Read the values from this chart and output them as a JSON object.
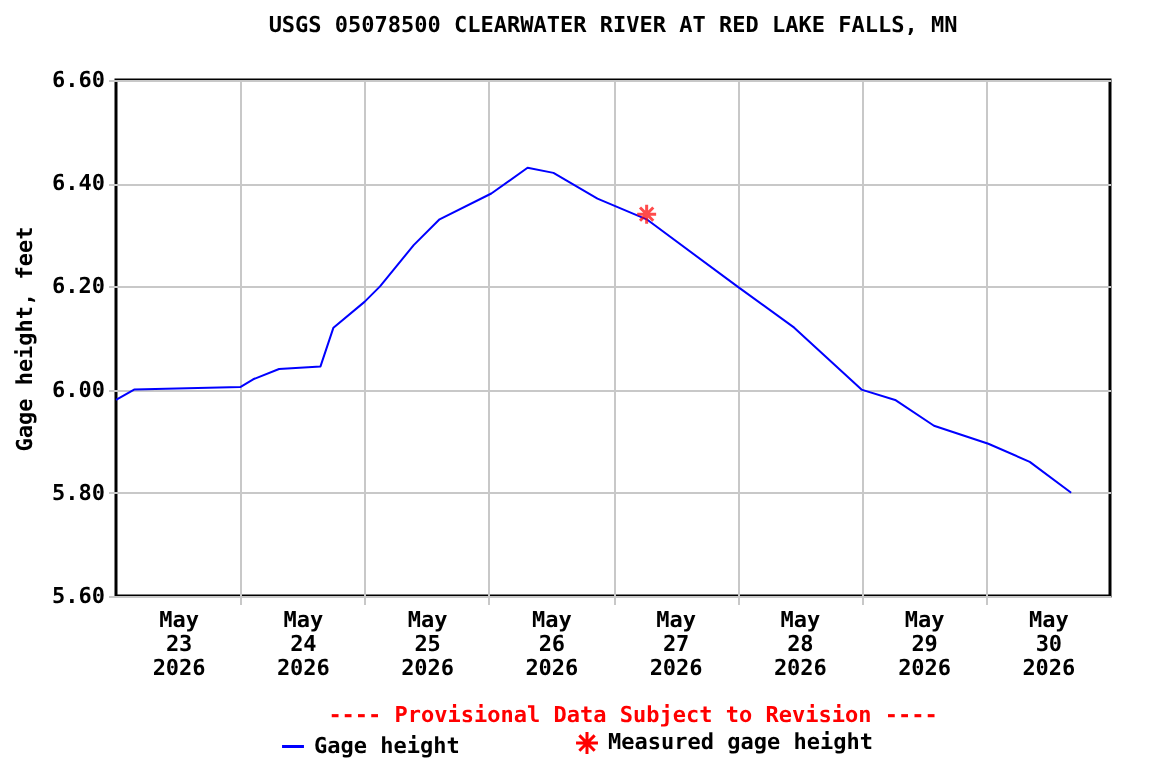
{
  "chart_data": {
    "type": "line",
    "title": "USGS 05078500 CLEARWATER RIVER AT RED LAKE FALLS, MN",
    "ylabel": "Gage height, feet",
    "annotations": [
      "---- Provisional Data Subject to Revision ----"
    ],
    "xlim": [
      "2026-05-23T00:00",
      "2026-05-31T00:00"
    ],
    "xticks": [
      {
        "value": "2026-05-23T12:00",
        "label": "May\n23\n2026"
      },
      {
        "value": "2026-05-24T12:00",
        "label": "May\n24\n2026"
      },
      {
        "value": "2026-05-25T12:00",
        "label": "May\n25\n2026"
      },
      {
        "value": "2026-05-26T12:00",
        "label": "May\n26\n2026"
      },
      {
        "value": "2026-05-27T12:00",
        "label": "May\n27\n2026"
      },
      {
        "value": "2026-05-28T12:00",
        "label": "May\n28\n2026"
      },
      {
        "value": "2026-05-29T12:00",
        "label": "May\n29\n2026"
      },
      {
        "value": "2026-05-30T12:00",
        "label": "May\n30\n2026"
      },
      {
        "value": "2026-05-24T00:00",
        "label": null
      },
      {
        "value": "2026-05-25T00:00",
        "label": null
      },
      {
        "value": "2026-05-26T00:00",
        "label": null
      },
      {
        "value": "2026-05-27T00:00",
        "label": null
      },
      {
        "value": "2026-05-28T00:00",
        "label": null
      },
      {
        "value": "2026-05-29T00:00",
        "label": null
      },
      {
        "value": "2026-05-30T00:00",
        "label": null
      }
    ],
    "ylim": [
      5.6,
      6.6
    ],
    "yticks": [
      {
        "value": 5.6,
        "label": "5.60"
      },
      {
        "value": 5.8,
        "label": "5.80"
      },
      {
        "value": 6.0,
        "label": "6.00"
      },
      {
        "value": 6.2,
        "label": "6.20"
      },
      {
        "value": 6.4,
        "label": "6.40"
      },
      {
        "value": 6.6,
        "label": "6.60"
      }
    ],
    "grid": true,
    "legend": "bottom",
    "series": [
      {
        "name": "Gage height",
        "type": "line",
        "color": "#0000ff",
        "x": [
          "2026-05-23T00:00",
          "2026-05-23T03:30",
          "2026-05-24T00:00",
          "2026-05-24T02:30",
          "2026-05-24T07:30",
          "2026-05-24T15:30",
          "2026-05-24T18:00",
          "2026-05-25T00:00",
          "2026-05-25T03:00",
          "2026-05-25T09:30",
          "2026-05-25T14:30",
          "2026-05-26T00:30",
          "2026-05-26T07:30",
          "2026-05-26T12:30",
          "2026-05-26T21:00",
          "2026-05-27T06:30",
          "2026-05-28T00:00",
          "2026-05-28T11:00",
          "2026-05-29T00:00",
          "2026-05-29T06:30",
          "2026-05-29T14:00",
          "2026-05-30T00:30",
          "2026-05-30T08:30",
          "2026-05-30T16:30"
        ],
        "values": [
          5.98,
          6.0,
          6.005,
          6.02,
          6.04,
          6.045,
          6.12,
          6.17,
          6.2,
          6.28,
          6.33,
          6.38,
          6.43,
          6.42,
          6.37,
          6.33,
          6.2,
          6.12,
          6.0,
          5.98,
          5.93,
          5.895,
          5.86,
          5.8
        ]
      },
      {
        "name": "Measured gage height",
        "type": "scatter",
        "marker": "cross",
        "color": "#ff0000",
        "x": [
          "2026-05-27T06:30"
        ],
        "values": [
          6.34
        ]
      }
    ]
  }
}
